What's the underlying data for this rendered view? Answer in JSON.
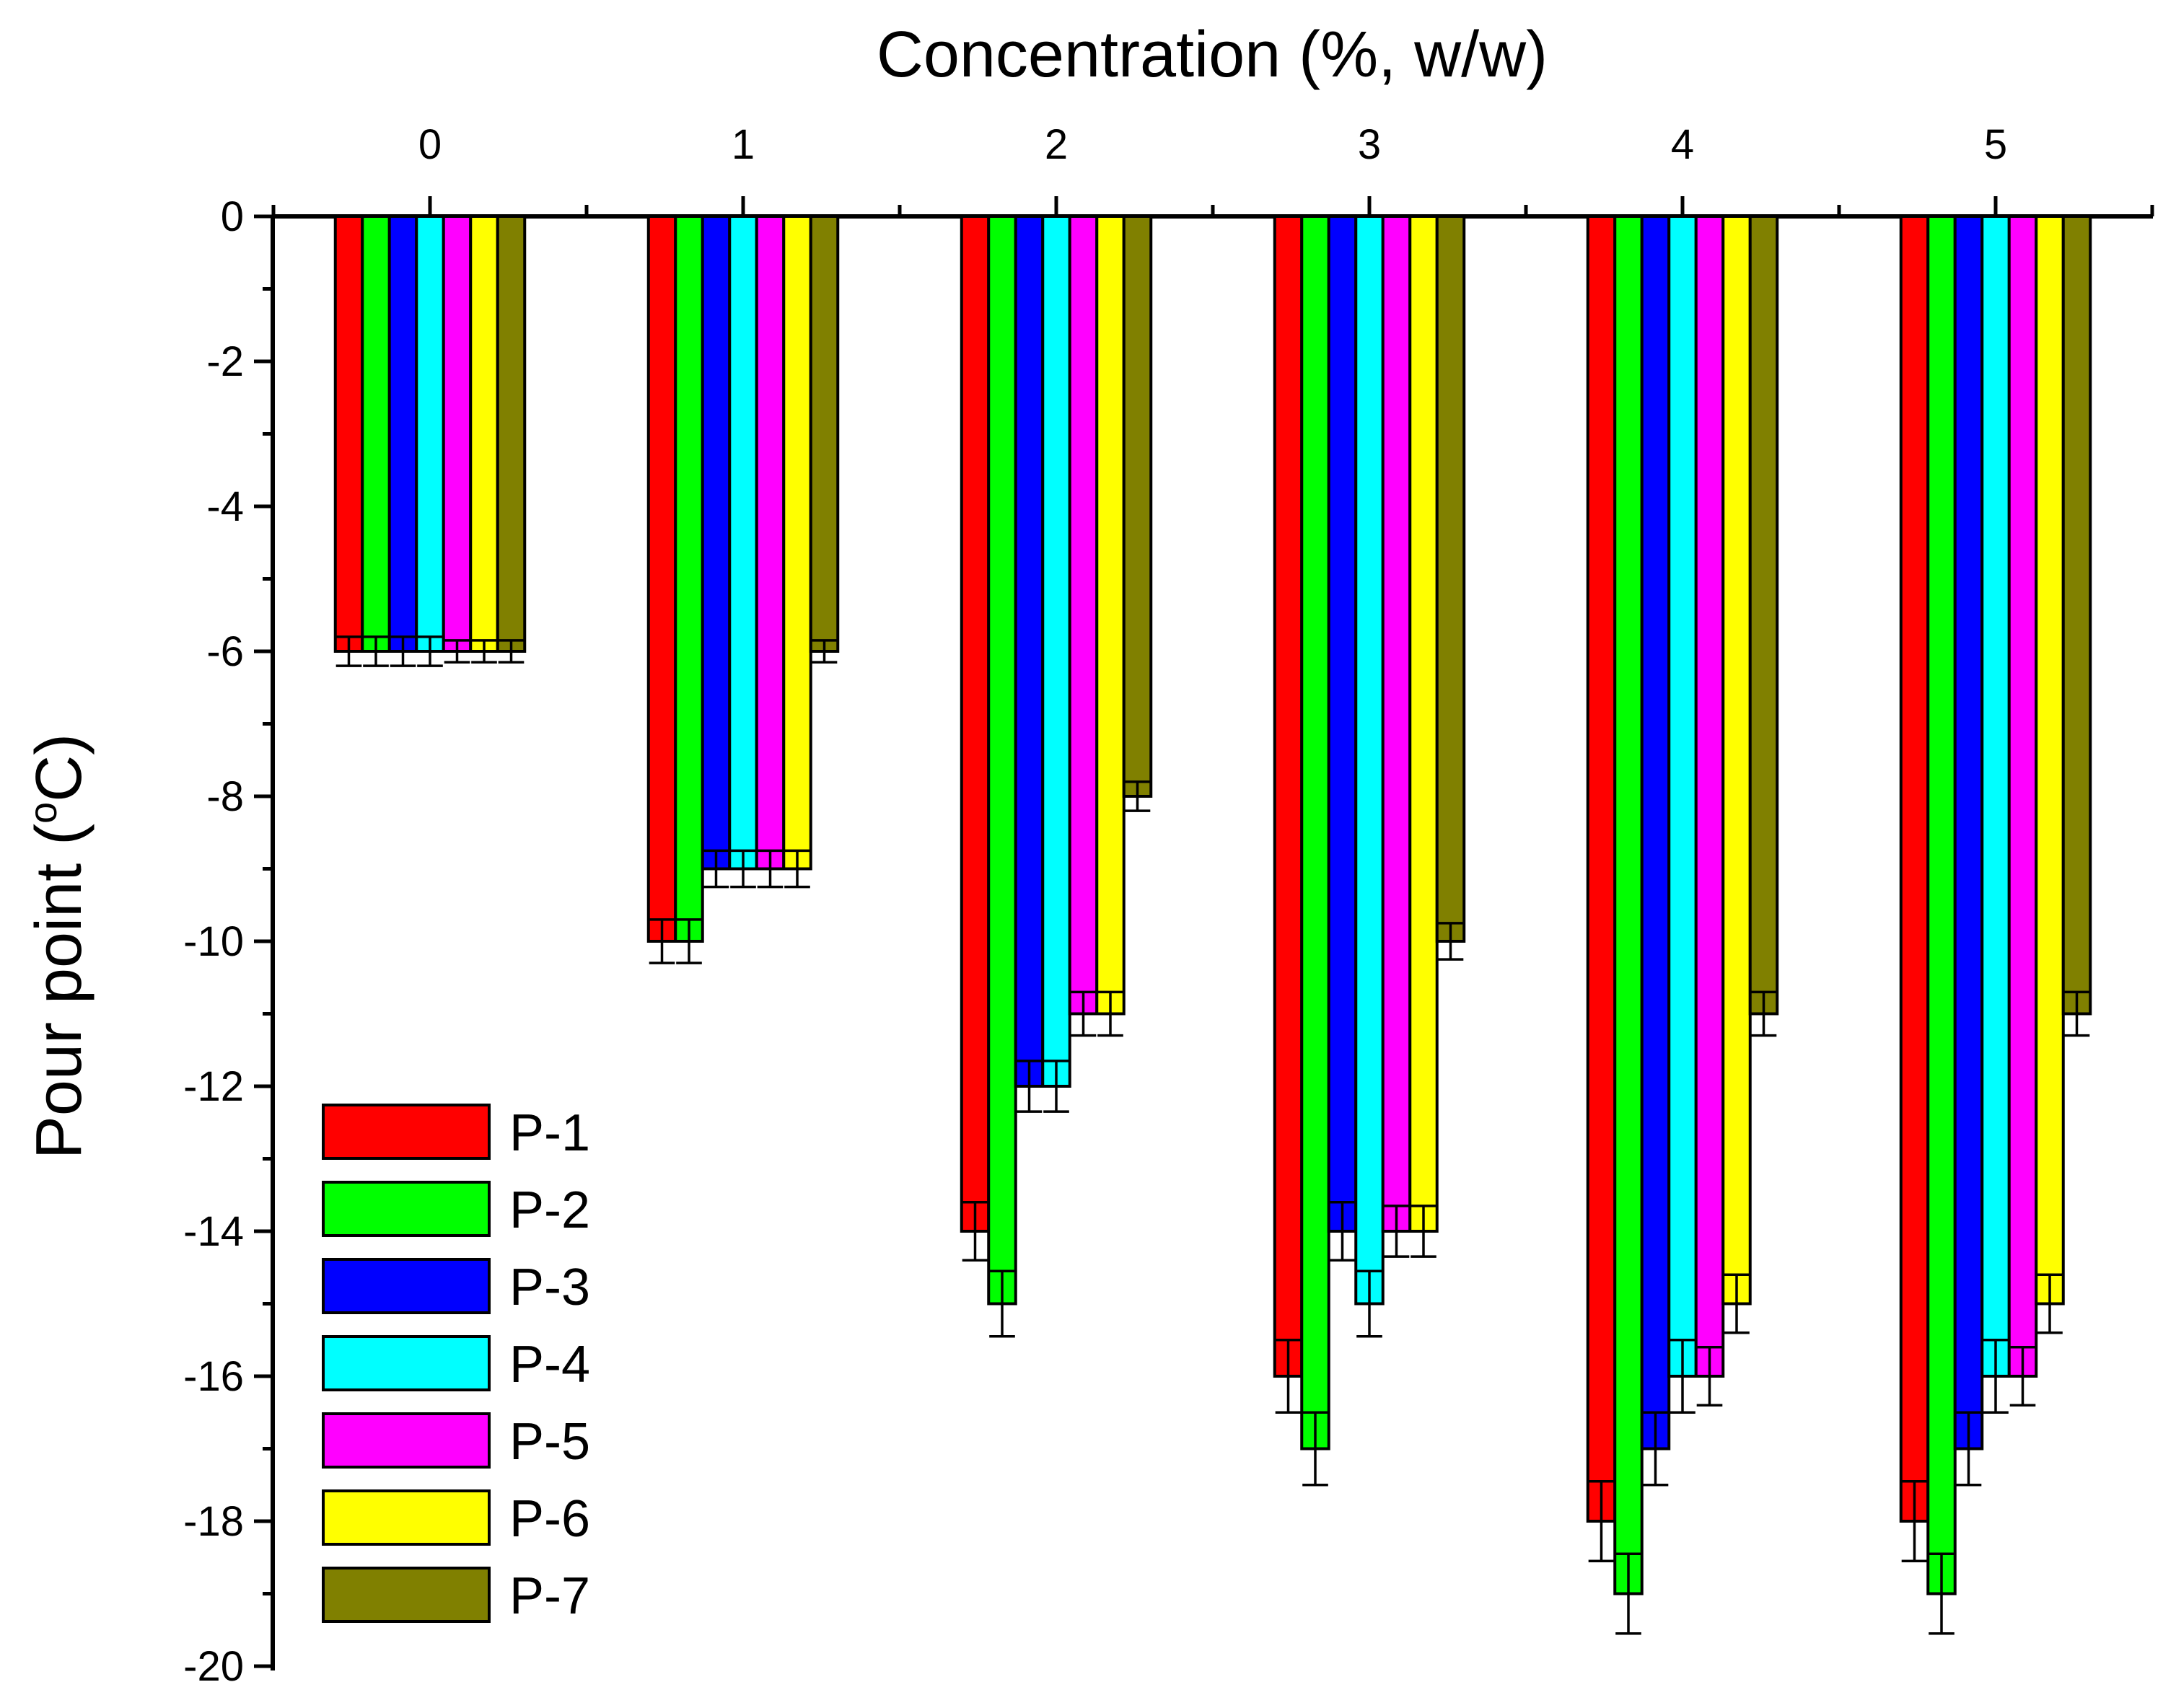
{
  "chart_data": {
    "type": "bar",
    "xlabel": "Concentration (%, w/w)",
    "ylabel": "Pour point (",
    "ylabel_sup": "o",
    "ylabel_unit": "C)",
    "categories": [
      "0",
      "1",
      "2",
      "3",
      "4",
      "5"
    ],
    "ylim": [
      -20,
      0
    ],
    "yticks": [
      "0",
      "-2",
      "-4",
      "-6",
      "-8",
      "-10",
      "-12",
      "-14",
      "-16",
      "-18",
      "-20"
    ],
    "ytick_values": [
      0,
      -2,
      -4,
      -6,
      -8,
      -10,
      -12,
      -14,
      -16,
      -18,
      -20
    ],
    "legend_position": "bottom-left",
    "series": [
      {
        "name": "P-1",
        "color": "#ff0000",
        "values": [
          -6,
          -10,
          -14,
          -16,
          -18,
          -18
        ],
        "errors": [
          0.2,
          0.3,
          0.4,
          0.5,
          0.55,
          0.55
        ]
      },
      {
        "name": "P-2",
        "color": "#00ff00",
        "values": [
          -6,
          -10,
          -15,
          -17,
          -19,
          -19
        ],
        "errors": [
          0.2,
          0.3,
          0.45,
          0.5,
          0.55,
          0.55
        ]
      },
      {
        "name": "P-3",
        "color": "#0000ff",
        "values": [
          -6,
          -9,
          -12,
          -14,
          -17,
          -17
        ],
        "errors": [
          0.2,
          0.25,
          0.35,
          0.4,
          0.5,
          0.5
        ]
      },
      {
        "name": "P-4",
        "color": "#00ffff",
        "values": [
          -6,
          -9,
          -12,
          -15,
          -16,
          -16
        ],
        "errors": [
          0.2,
          0.25,
          0.35,
          0.45,
          0.5,
          0.5
        ]
      },
      {
        "name": "P-5",
        "color": "#ff00ff",
        "values": [
          -6,
          -9,
          -11,
          -14,
          -16,
          -16
        ],
        "errors": [
          0.15,
          0.25,
          0.3,
          0.35,
          0.4,
          0.4
        ]
      },
      {
        "name": "P-6",
        "color": "#ffff00",
        "values": [
          -6,
          -9,
          -11,
          -14,
          -15,
          -15
        ],
        "errors": [
          0.15,
          0.25,
          0.3,
          0.35,
          0.4,
          0.4
        ]
      },
      {
        "name": "P-7",
        "color": "#808000",
        "values": [
          -6,
          -6,
          -8,
          -10,
          -11,
          -11
        ],
        "errors": [
          0.15,
          0.15,
          0.2,
          0.25,
          0.3,
          0.3
        ]
      }
    ]
  }
}
